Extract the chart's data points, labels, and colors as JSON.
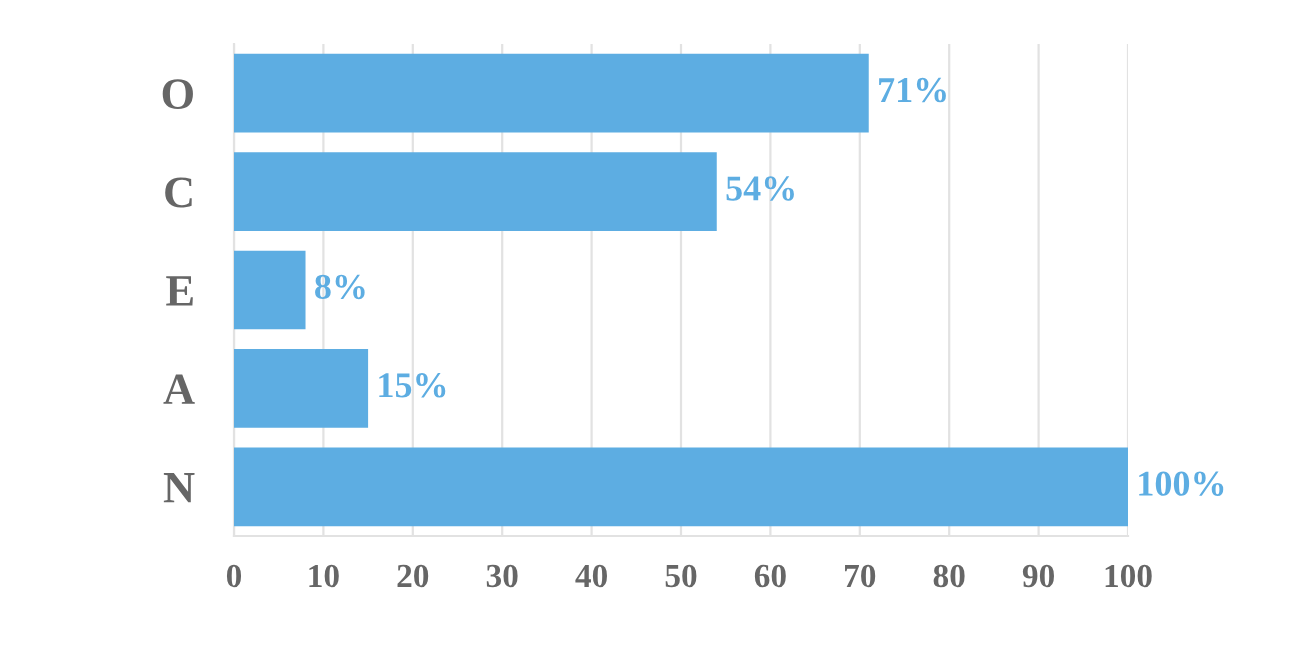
{
  "chart_data": {
    "type": "bar",
    "orientation": "horizontal",
    "categories": [
      "O",
      "C",
      "E",
      "A",
      "N"
    ],
    "values": [
      71,
      54,
      8,
      15,
      100
    ],
    "value_labels": [
      "71%",
      "54%",
      "8%",
      "15%",
      "100%"
    ],
    "color": "#5dade2",
    "xlim": [
      0,
      100
    ],
    "xticks": [
      0,
      10,
      20,
      30,
      40,
      50,
      60,
      70,
      80,
      90,
      100
    ],
    "grid": "x",
    "legend": false
  }
}
